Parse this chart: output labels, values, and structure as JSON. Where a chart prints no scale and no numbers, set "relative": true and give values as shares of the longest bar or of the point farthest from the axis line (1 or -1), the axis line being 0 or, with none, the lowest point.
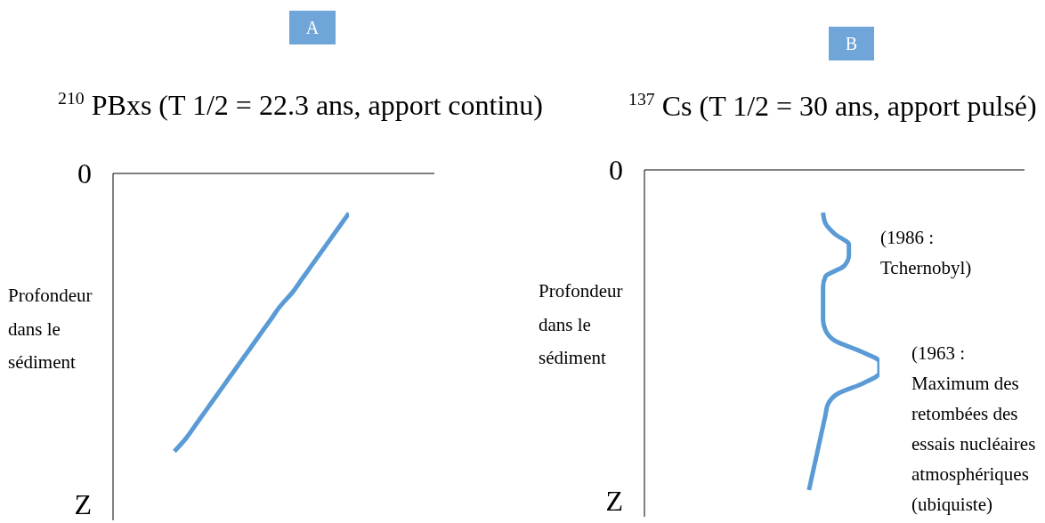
{
  "chart_data": [
    {
      "type": "line",
      "title": "A",
      "subtitle": "$^{210}$ PBxs (T 1/2 = 22.3 ans, apport continu)",
      "ylabel": "Profondeur dans le sédiment",
      "relative": true,
      "orientation": "horizontal",
      "categories": [
        "0",
        null,
        null,
        null,
        null,
        null,
        null,
        null,
        null,
        null,
        null,
        null,
        null,
        null,
        null,
        null,
        null,
        null,
        null,
        null,
        null,
        null,
        null,
        null,
        null,
        "Z"
      ],
      "series": [
        {
          "color": "#5b9bd5",
          "values": [
            null,
            null,
            null,
            1,
            0.96,
            0.92,
            0.88,
            0.84,
            0.8,
            0.76,
            0.71,
            0.67,
            0.63,
            0.59,
            0.55,
            0.51,
            0.47,
            0.43,
            0.39,
            0.35,
            0.31,
            0.26,
            null,
            null,
            null,
            null
          ]
        }
      ]
    },
    {
      "type": "line",
      "title": "B",
      "subtitle": "$^{137}$ Cs (T 1/2 = 30 ans, apport pulsé)",
      "ylabel": "Profondeur dans le sédiment",
      "relative": true,
      "orientation": "horizontal",
      "categories": [
        "0",
        null,
        null,
        null,
        null,
        null,
        null,
        null,
        null,
        null,
        null,
        null,
        null,
        null,
        null,
        null,
        null,
        null,
        null,
        null,
        null,
        null,
        null,
        null,
        null,
        null,
        null,
        null,
        null,
        null,
        null,
        "Z"
      ],
      "series": [
        {
          "color": "#5b9bd5",
          "values": [
            null,
            null,
            null,
            null,
            0.76,
            0.77,
            0.81,
            0.87,
            0.87,
            0.85,
            0.77,
            0.76,
            0.76,
            0.76,
            0.76,
            0.77,
            0.81,
            0.92,
            1,
            1,
            0.93,
            0.82,
            0.78,
            0.77,
            0.76,
            0.75,
            0.74,
            0.73,
            0.72,
            0.71,
            0.7,
            null
          ]
        }
      ],
      "annotations": [
        "(1986 : Tchernobyl)",
        "(1963 : Maximum des retombées des essais nucléaires atmosphériques (ubiquiste)"
      ]
    }
  ]
}
